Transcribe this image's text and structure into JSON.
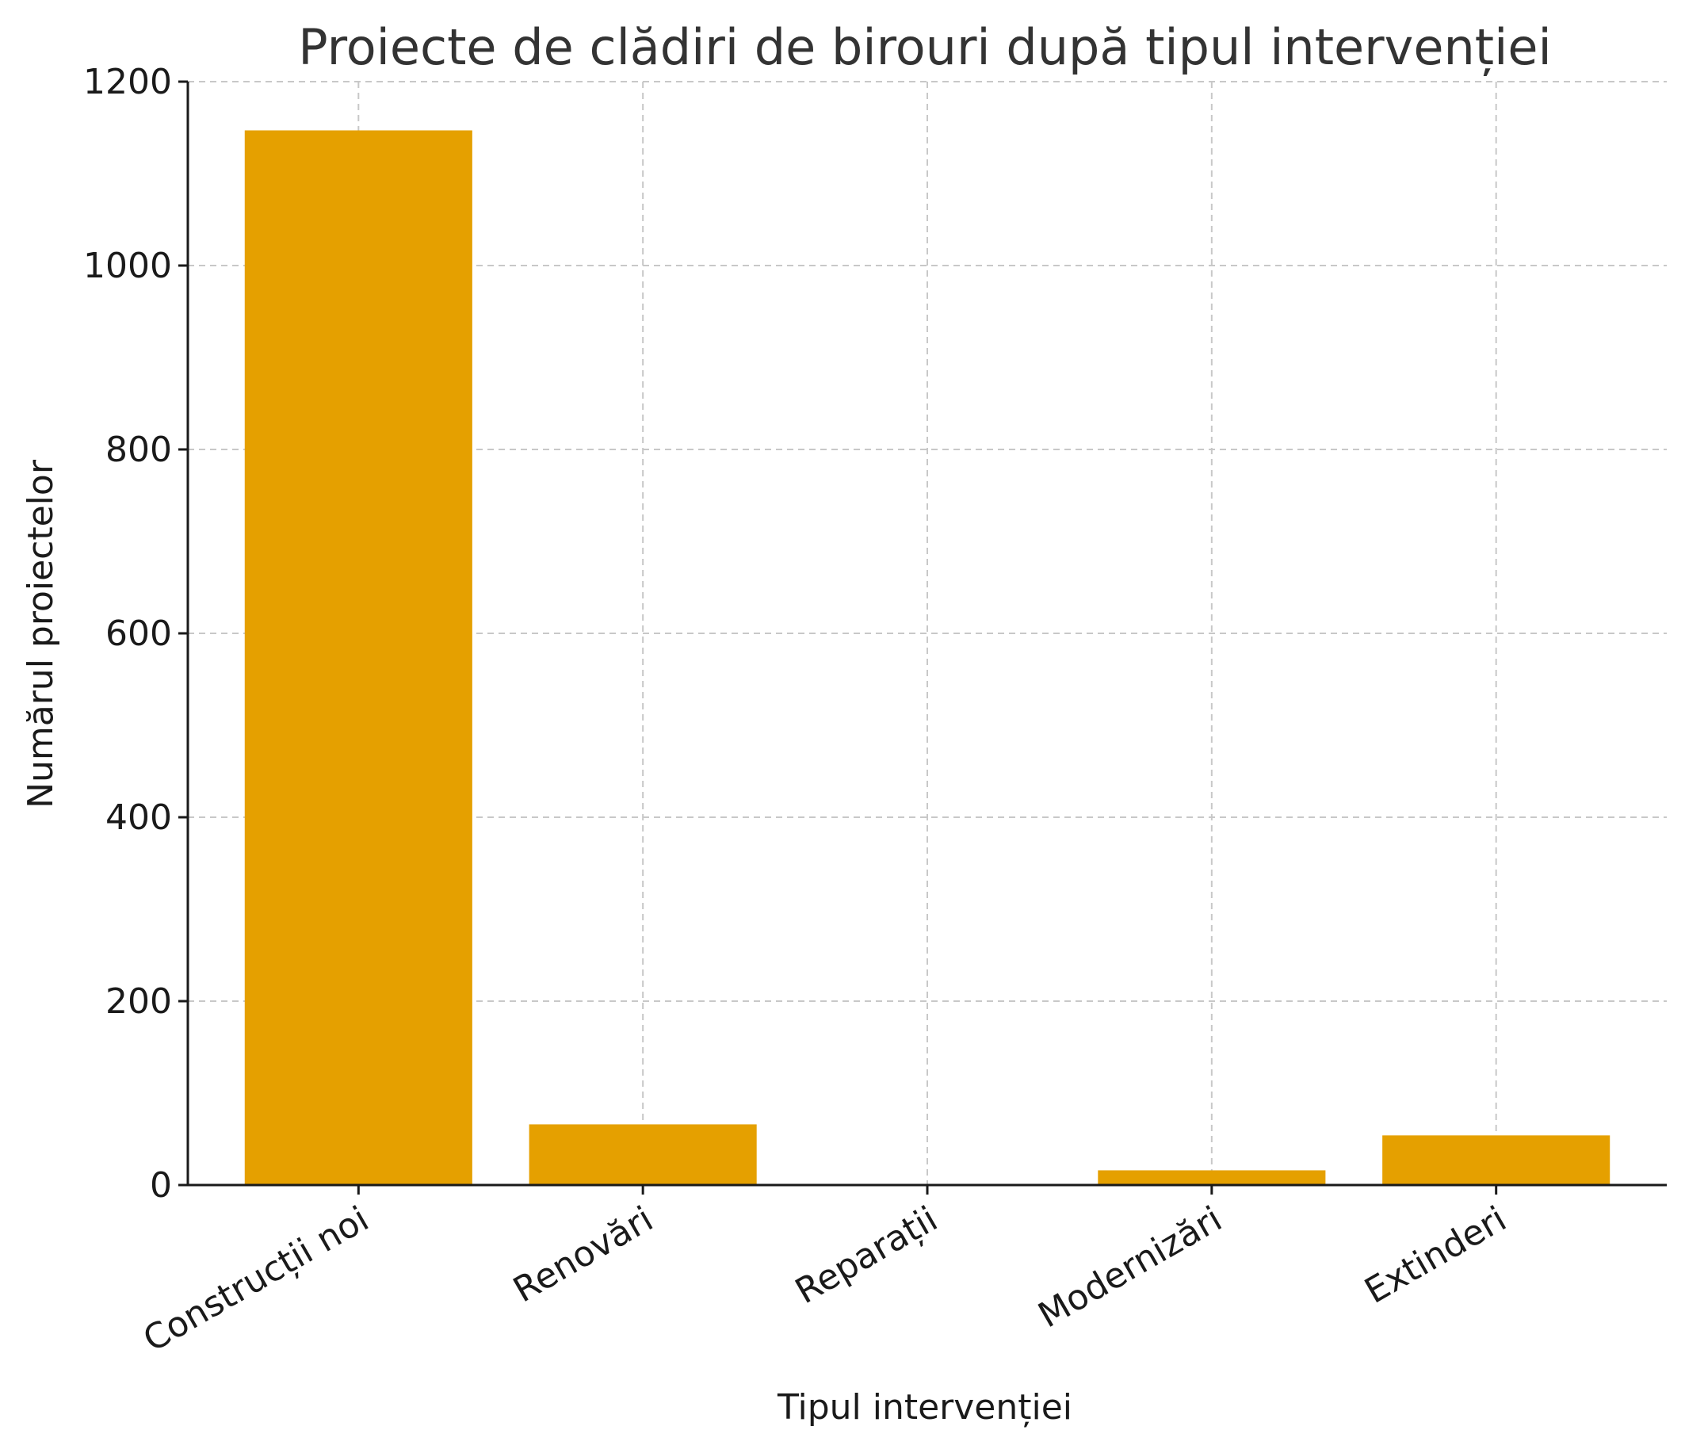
{
  "chart_data": {
    "type": "bar",
    "title": "Proiecte de clădiri de birouri după tipul intervenției",
    "xlabel": "Tipul intervenției",
    "ylabel": "Numărul proiectelor",
    "categories": [
      "Construcții noi",
      "Renovări",
      "Reparații",
      "Modernizări",
      "Extinderi"
    ],
    "values": [
      1147,
      66,
      0,
      16,
      54
    ],
    "ylim": [
      0,
      1200
    ],
    "yticks": [
      "0",
      "200",
      "400",
      "600",
      "800",
      "1000",
      "1200"
    ],
    "grid": true,
    "bar_color": "#e5a000"
  }
}
